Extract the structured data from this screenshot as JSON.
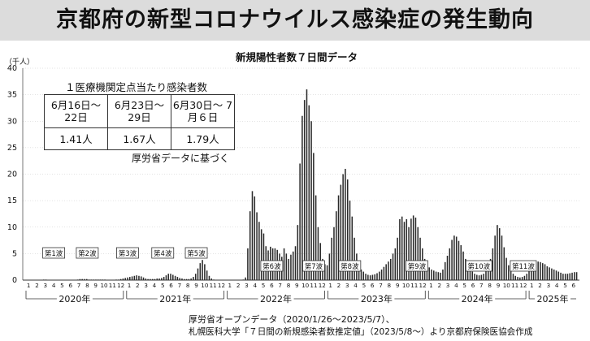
{
  "page_title": "京都府の新型コロナウイルス感染症の発生動向",
  "chart_data": {
    "type": "bar",
    "title": "新規陽性者数７日間データ",
    "unit": "（千人）",
    "ylim": [
      0,
      40
    ],
    "yticks": [
      "0",
      "5",
      "10",
      "15",
      "20",
      "25",
      "30",
      "35",
      "40"
    ],
    "month_labels": [
      "1",
      "2",
      "3",
      "4",
      "5",
      "6",
      "7",
      "8",
      "9",
      "10",
      "11",
      "12",
      "1",
      "2",
      "3",
      "4",
      "5",
      "6",
      "7",
      "8",
      "9",
      "10",
      "11",
      "12",
      "1",
      "2",
      "3",
      "4",
      "5",
      "6",
      "7",
      "8",
      "9",
      "10",
      "11",
      "12",
      "1",
      "2",
      "3",
      "4",
      "5",
      "6",
      "7",
      "8",
      "9",
      "10",
      "11",
      "12",
      "1",
      "2",
      "3",
      "4",
      "5",
      "6",
      "7",
      "8",
      "9",
      "10",
      "11",
      "12",
      "1",
      "2",
      "3",
      "4",
      "5",
      "6"
    ],
    "year_labels": [
      "2020年",
      "2021年",
      "2022年",
      "2023年",
      "2024年",
      "2025年"
    ],
    "wave_labels": [
      "第1波",
      "第2波",
      "第3波",
      "第4波",
      "第5波",
      "第6波",
      "第7波",
      "第8波",
      "第9波",
      "第10波",
      "第11波"
    ],
    "values": [
      0,
      0,
      0,
      0,
      0,
      0,
      0,
      0,
      0.1,
      0.1,
      0,
      0,
      0,
      0,
      0,
      0,
      0,
      0,
      0,
      0,
      0,
      0,
      0,
      0.1,
      0.2,
      0.2,
      0.2,
      0.2,
      0.1,
      0.1,
      0.1,
      0.1,
      0.1,
      0.1,
      0.1,
      0.1,
      0,
      0,
      0,
      0,
      0.1,
      0.1,
      0.2,
      0.3,
      0.4,
      0.5,
      0.6,
      0.7,
      0.8,
      0.9,
      0.8,
      0.7,
      0.5,
      0.3,
      0.2,
      0.2,
      0.2,
      0.2,
      0.3,
      0.3,
      0.4,
      0.6,
      0.9,
      1.2,
      1.2,
      1.0,
      0.8,
      0.6,
      0.4,
      0.3,
      0.2,
      0.2,
      0.2,
      0.3,
      0.6,
      1.2,
      2.2,
      3.2,
      3.8,
      3.0,
      1.8,
      0.8,
      0.3,
      0.1,
      0,
      0,
      0,
      0,
      0,
      0,
      0,
      0,
      0,
      0,
      0,
      0,
      0.1,
      0.5,
      6.0,
      13.0,
      16.8,
      15.8,
      12.8,
      11.0,
      9.6,
      8.8,
      6.4,
      5.6,
      6.3,
      6.0,
      6.0,
      5.7,
      5.0,
      4.4,
      6.0,
      5.0,
      4.0,
      4.8,
      5.4,
      6.4,
      10.4,
      22.0,
      31.0,
      34.0,
      36.0,
      33.0,
      30.0,
      24.0,
      16.0,
      10.0,
      7.0,
      4.0,
      3.0,
      2.8,
      5.0,
      8.0,
      10.0,
      13.0,
      16.0,
      18.0,
      20.0,
      21.0,
      19.0,
      15.0,
      12.0,
      8.0,
      5.0,
      3.0,
      2.0,
      1.6,
      1.2,
      1.0,
      0.9,
      1.0,
      1.1,
      1.3,
      1.6,
      2.0,
      2.5,
      3.0,
      3.5,
      4.0,
      5.0,
      6.0,
      8.0,
      11.5,
      12.0,
      11.0,
      11.5,
      10.0,
      11.6,
      12.2,
      11.8,
      10.0,
      8.0,
      6.0,
      4.0,
      3.0,
      2.4,
      2.0,
      1.8,
      1.6,
      1.5,
      1.4,
      2.0,
      3.4,
      4.6,
      6.0,
      7.6,
      8.4,
      8.2,
      7.4,
      6.6,
      5.4,
      4.0,
      3.0,
      2.2,
      1.6,
      1.2,
      1.0,
      0.9,
      1.0,
      1.2,
      1.8,
      2.6,
      4.0,
      6.0,
      8.4,
      10.4,
      9.8,
      8.4,
      6.2,
      4.2,
      2.8,
      1.8,
      1.2,
      0.8,
      0.6,
      0.5,
      0.6,
      0.8,
      1.2,
      2.0,
      2.6,
      3.0,
      3.4,
      3.5,
      3.4,
      3.2,
      3.0,
      2.6,
      2.4,
      2.2,
      2.0,
      1.8,
      1.6,
      1.4,
      1.2,
      1.2,
      1.2,
      1.3,
      1.4,
      1.5,
      1.5
    ]
  },
  "inset": {
    "title": "１医療機関定点当たり感染者数",
    "headers": [
      "6月16日〜 22日",
      "6月23日〜 29日",
      "6月30日〜 7月６日"
    ],
    "values": [
      "1.41人",
      "1.67人",
      "1.79人"
    ],
    "note": "厚労省データに基づく"
  },
  "source": {
    "line1": "厚労省オープンデータ（2020/1/26〜2023/5/7）、",
    "line2": "札幌医科大学「７日間の新規感染者数推定値」（2023/5/8〜）より京都府保険医協会作成"
  }
}
